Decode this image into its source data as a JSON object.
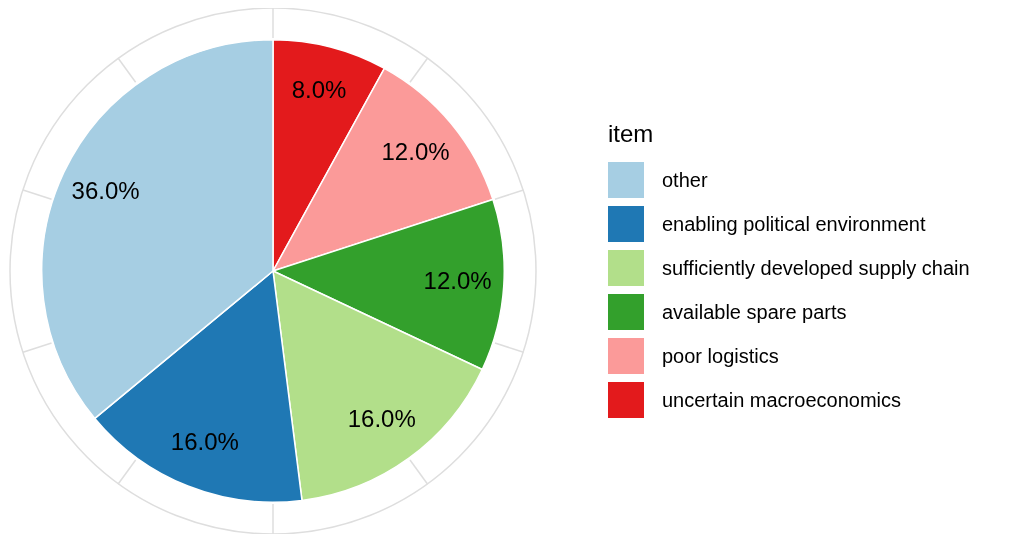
{
  "chart_data": {
    "type": "pie",
    "legend_title": "item",
    "legend": "right",
    "categories": [
      "other",
      "enabling political environment",
      "sufficiently developed supply chain",
      "available spare parts",
      "poor logistics",
      "uncertain macroeconomics"
    ],
    "values": [
      36,
      16,
      16,
      12,
      12,
      8
    ],
    "colors": [
      "#a6cee3",
      "#1f78b4",
      "#b2df8a",
      "#33a02c",
      "#fb9a99",
      "#e31a1c"
    ],
    "value_labels": [
      "36.0%",
      "16.0%",
      "16.0%",
      "12.0%",
      "12.0%",
      "8.0%"
    ],
    "grid": true
  }
}
